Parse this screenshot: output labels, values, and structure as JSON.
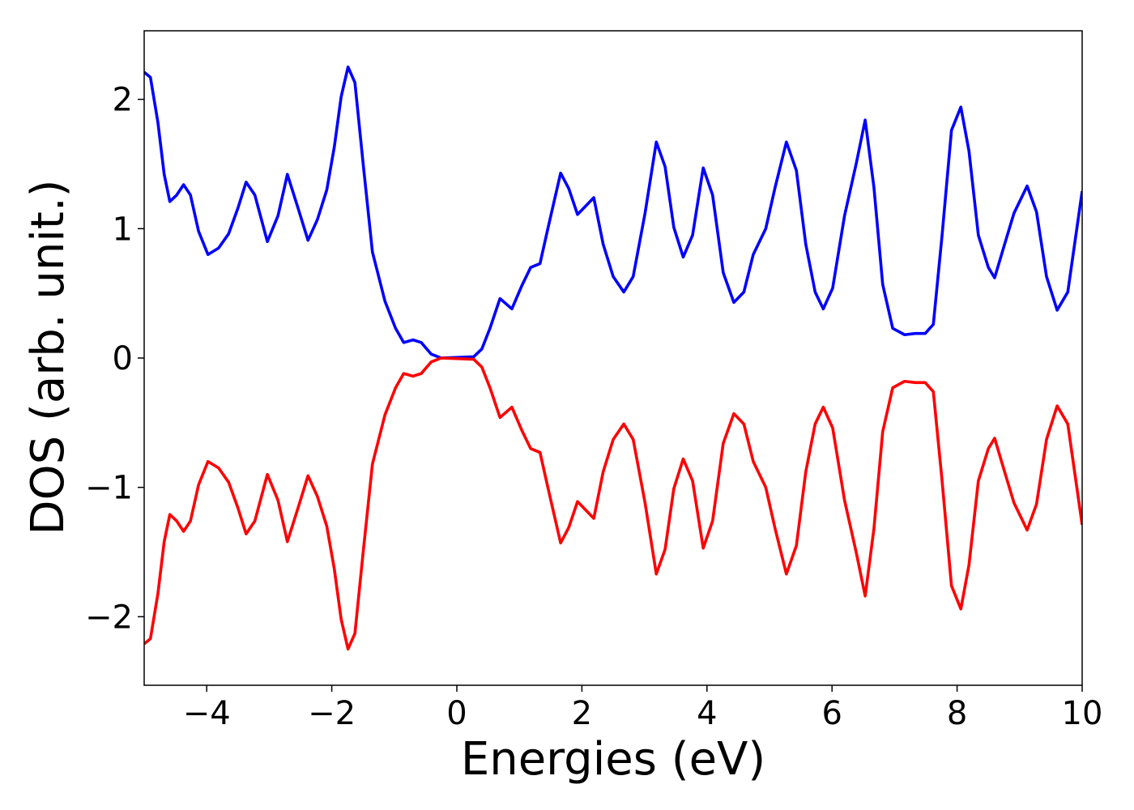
{
  "chart_data": {
    "type": "line",
    "xlabel": "Energies (eV)",
    "ylabel": "DOS (arb. unit.)",
    "x": [
      -5,
      -4.9,
      -4.78,
      -4.68,
      -4.59,
      -4.48,
      -4.37,
      -4.26,
      -4.13,
      -3.98,
      -3.81,
      -3.65,
      -3.5,
      -3.37,
      -3.23,
      -3.03,
      -2.86,
      -2.71,
      -2.54,
      -2.38,
      -2.23,
      -2.08,
      -1.96,
      -1.85,
      -1.74,
      -1.63,
      -1.5,
      -1.35,
      -1.15,
      -0.98,
      -0.85,
      -0.7,
      -0.57,
      -0.41,
      -0.25,
      0.27,
      0.4,
      0.53,
      0.69,
      0.88,
      1.04,
      1.18,
      1.33,
      1.46,
      1.66,
      1.79,
      1.93,
      2.07,
      2.19,
      2.34,
      2.5,
      2.67,
      2.82,
      3.01,
      3.19,
      3.33,
      3.47,
      3.62,
      3.77,
      3.94,
      4.09,
      4.26,
      4.43,
      4.59,
      4.74,
      4.94,
      5.09,
      5.27,
      5.43,
      5.58,
      5.73,
      5.86,
      6.01,
      6.2,
      6.39,
      6.53,
      6.67,
      6.81,
      6.97,
      7.16,
      7.33,
      7.49,
      7.62,
      7.76,
      7.91,
      8.06,
      8.19,
      8.34,
      8.5,
      8.6,
      8.76,
      8.91,
      9.12,
      9.27,
      9.43,
      9.6,
      9.77,
      10
    ],
    "series": [
      {
        "color": "#0000ff",
        "values": [
          2.21,
          2.17,
          1.82,
          1.42,
          1.21,
          1.26,
          1.34,
          1.26,
          0.98,
          0.8,
          0.85,
          0.96,
          1.16,
          1.36,
          1.26,
          0.9,
          1.1,
          1.42,
          1.16,
          0.91,
          1.07,
          1.3,
          1.63,
          2.02,
          2.25,
          2.13,
          1.51,
          0.82,
          0.44,
          0.23,
          0.12,
          0.14,
          0.12,
          0.03,
          0,
          0.01,
          0.07,
          0.23,
          0.46,
          0.38,
          0.56,
          0.7,
          0.73,
          1.01,
          1.43,
          1.31,
          1.11,
          1.18,
          1.24,
          0.88,
          0.63,
          0.51,
          0.63,
          1.12,
          1.67,
          1.48,
          1.01,
          0.78,
          0.95,
          1.47,
          1.26,
          0.66,
          0.43,
          0.51,
          0.8,
          1,
          1.32,
          1.67,
          1.45,
          0.88,
          0.51,
          0.38,
          0.54,
          1.1,
          1.51,
          1.84,
          1.32,
          0.57,
          0.23,
          0.18,
          0.19,
          0.19,
          0.26,
          0.95,
          1.76,
          1.94,
          1.6,
          0.95,
          0.7,
          0.62,
          0.88,
          1.12,
          1.33,
          1.13,
          0.63,
          0.37,
          0.51,
          1.29
        ]
      },
      {
        "color": "#ff0000",
        "values": [
          -2.21,
          -2.17,
          -1.82,
          -1.42,
          -1.21,
          -1.26,
          -1.34,
          -1.26,
          -0.98,
          -0.8,
          -0.85,
          -0.96,
          -1.16,
          -1.36,
          -1.26,
          -0.9,
          -1.1,
          -1.42,
          -1.16,
          -0.91,
          -1.07,
          -1.3,
          -1.63,
          -2.02,
          -2.25,
          -2.13,
          -1.51,
          -0.82,
          -0.44,
          -0.23,
          -0.12,
          -0.14,
          -0.12,
          -0.03,
          0,
          -0.01,
          -0.07,
          -0.23,
          -0.46,
          -0.38,
          -0.56,
          -0.7,
          -0.73,
          -1.01,
          -1.43,
          -1.31,
          -1.11,
          -1.18,
          -1.24,
          -0.88,
          -0.63,
          -0.51,
          -0.63,
          -1.12,
          -1.67,
          -1.48,
          -1.01,
          -0.78,
          -0.95,
          -1.47,
          -1.26,
          -0.66,
          -0.43,
          -0.51,
          -0.8,
          -1,
          -1.32,
          -1.67,
          -1.45,
          -0.88,
          -0.51,
          -0.38,
          -0.54,
          -1.1,
          -1.51,
          -1.84,
          -1.32,
          -0.57,
          -0.23,
          -0.18,
          -0.19,
          -0.19,
          -0.26,
          -0.95,
          -1.76,
          -1.94,
          -1.6,
          -0.95,
          -0.7,
          -0.62,
          -0.88,
          -1.12,
          -1.33,
          -1.13,
          -0.63,
          -0.37,
          -0.51,
          -1.29
        ]
      }
    ],
    "xlim": [
      -5,
      10
    ],
    "ylim": [
      -2.53,
      2.53
    ],
    "xticks": [
      {
        "value": -4,
        "label": "−4"
      },
      {
        "value": -2,
        "label": "−2"
      },
      0,
      2,
      4,
      6,
      8,
      10
    ],
    "yticks": [
      {
        "value": -2,
        "label": "−2"
      },
      {
        "value": -1,
        "label": "−1"
      },
      0,
      1,
      2
    ],
    "grid": false
  }
}
